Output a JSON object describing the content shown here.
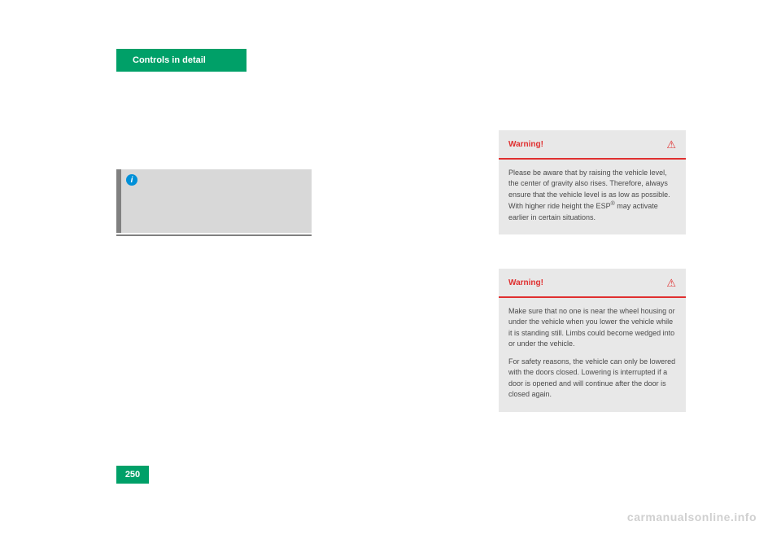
{
  "header": {
    "title": "Controls in detail"
  },
  "info_icon": "i",
  "warnings": [
    {
      "title": "Warning!",
      "triangle": "⚠",
      "paragraphs": [
        "Please be aware that by raising the vehicle level, the center of gravity also rises. Therefore, always ensure that the vehicle level is as low as possible. With higher ride height the ESP® may activate earlier in certain situations."
      ]
    },
    {
      "title": "Warning!",
      "triangle": "⚠",
      "paragraphs": [
        "Make sure that no one is near the wheel housing or under the vehicle when you lower the vehicle while it is standing still. Limbs could become wedged into or under the vehicle.",
        "For safety reasons, the vehicle can only be lowered with the doors closed. Lowering is interrupted if a door is opened and will continue after the door is closed again."
      ]
    }
  ],
  "page_number": "250",
  "watermark": "carmanualsonline.info",
  "colors": {
    "green": "#00a068",
    "red": "#e03030",
    "grey_box": "#e8e8e8",
    "info_grey": "#d8d8d8",
    "stripe_grey": "#808080",
    "blue_icon": "#0090d8",
    "watermark": "#d0d0d0"
  }
}
